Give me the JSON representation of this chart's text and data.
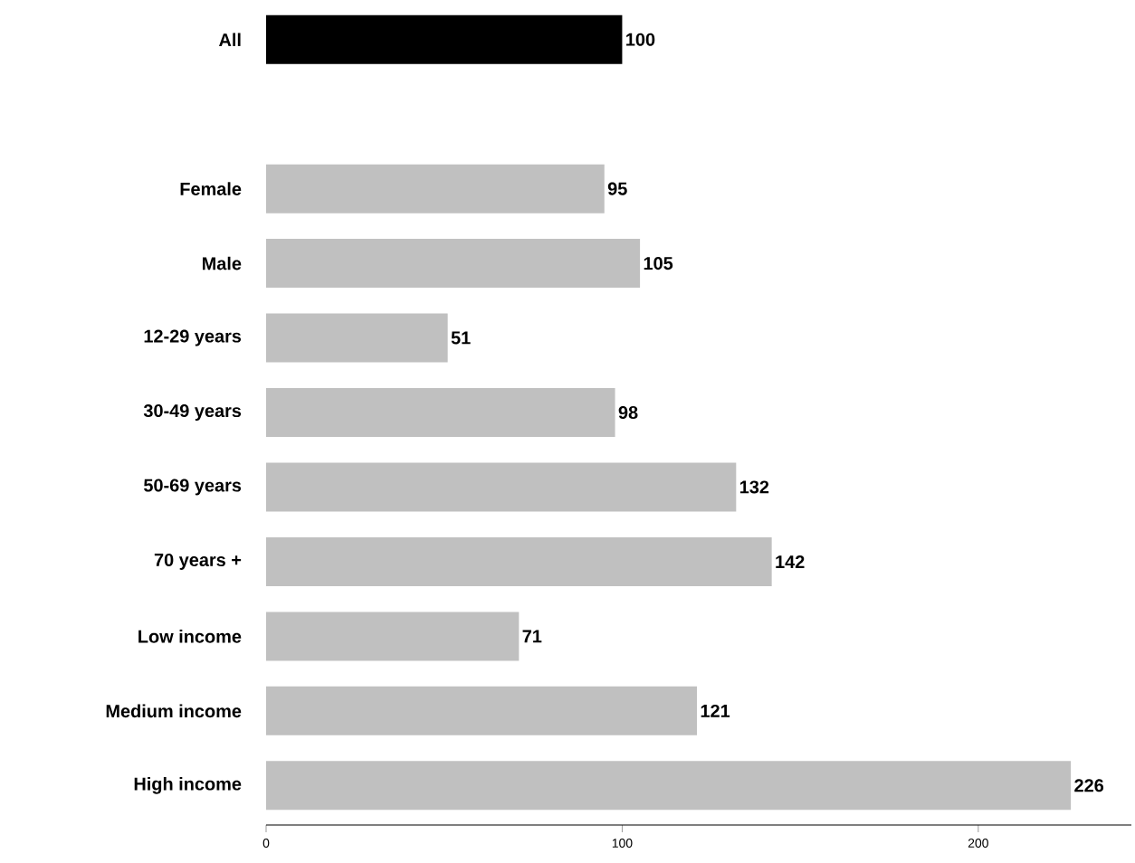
{
  "chart_data": {
    "type": "bar",
    "orientation": "horizontal",
    "categories": [
      "All",
      null,
      "Female",
      "Male",
      "12-29 years",
      "30-49 years",
      "50-69 years",
      "70 years +",
      "Low income",
      "Medium income",
      "High income"
    ],
    "values": [
      100,
      null,
      95,
      105,
      51,
      98,
      132,
      142,
      71,
      121,
      226
    ],
    "colors": [
      "#000000",
      "#c0c0c0",
      "#c0c0c0",
      "#c0c0c0",
      "#c0c0c0",
      "#c0c0c0",
      "#c0c0c0",
      "#c0c0c0",
      "#c0c0c0",
      "#c0c0c0",
      "#c0c0c0"
    ],
    "xlim": [
      0,
      243
    ],
    "xticks": [
      0,
      100,
      200
    ],
    "data_labels": true,
    "grid": false
  }
}
